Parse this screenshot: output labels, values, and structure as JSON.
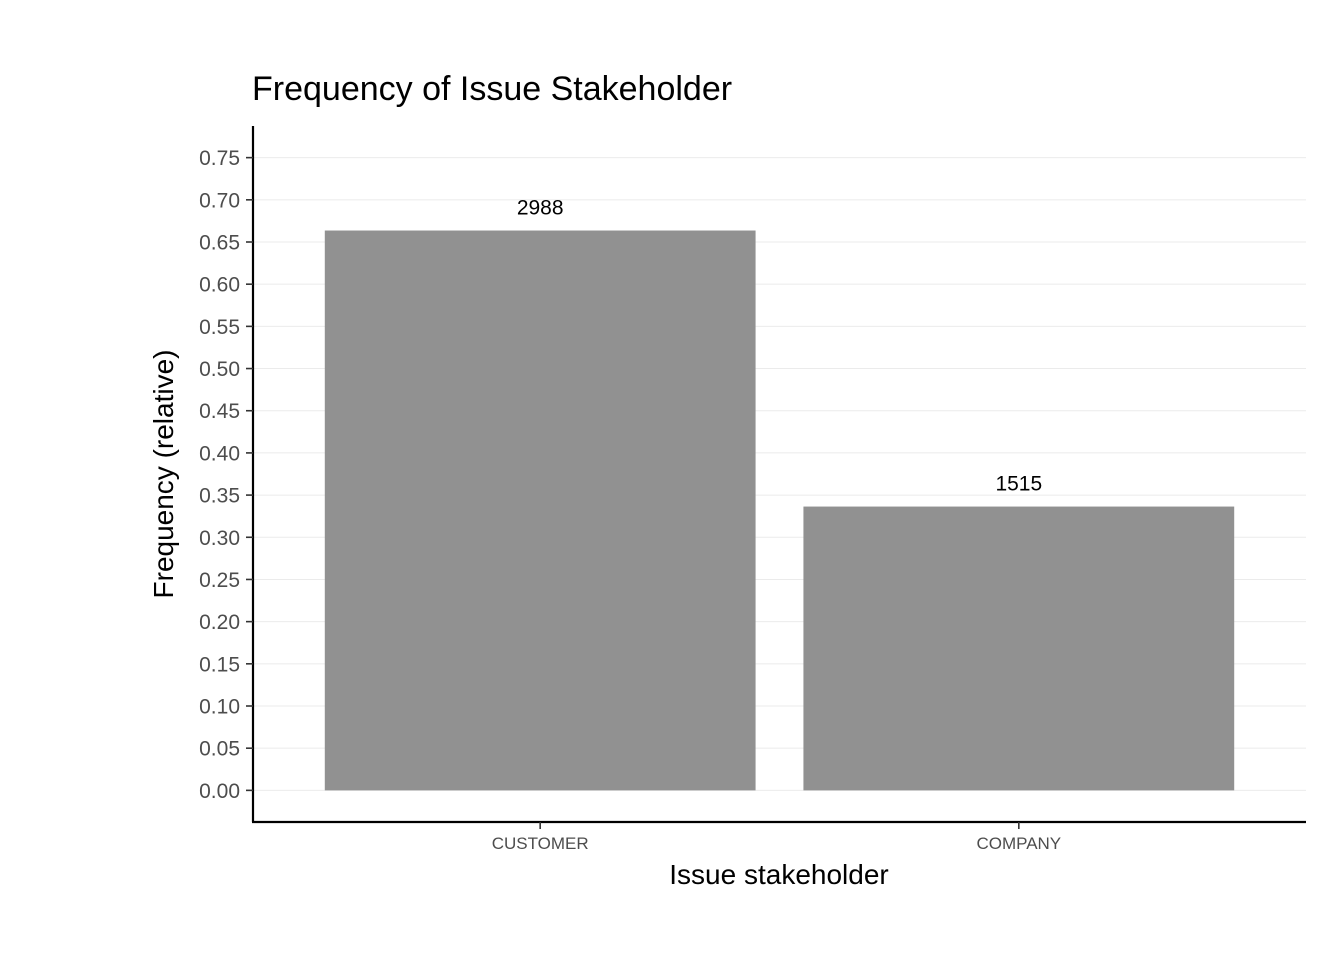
{
  "chart_data": {
    "type": "bar",
    "title": "Frequency of Issue Stakeholder",
    "xlabel": "Issue stakeholder",
    "ylabel": "Frequency (relative)",
    "categories": [
      "CUSTOMER",
      "COMPANY"
    ],
    "values": [
      0.6636,
      0.3364
    ],
    "data_labels": [
      "2988",
      "1515"
    ],
    "yticks": [
      "0.00",
      "0.05",
      "0.10",
      "0.15",
      "0.20",
      "0.25",
      "0.30",
      "0.35",
      "0.40",
      "0.45",
      "0.50",
      "0.55",
      "0.60",
      "0.65",
      "0.70",
      "0.75"
    ],
    "ylim": [
      -0.0375,
      0.7875
    ],
    "grid": true,
    "legend": "none",
    "bar_color": "#919191"
  }
}
